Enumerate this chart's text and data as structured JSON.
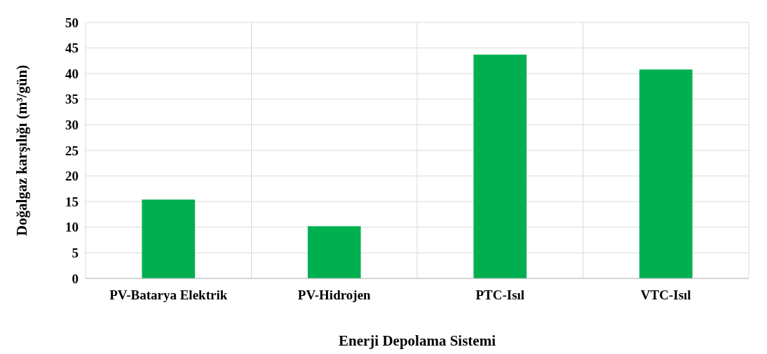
{
  "chart_data": {
    "type": "bar",
    "xlabel": "Enerji Depolama Sistemi",
    "ylabel": "Doğalgaz karşılığı (m³/gün)",
    "categories": [
      "PV-Batarya Elektrik",
      "PV-Hidrojen",
      "PTC-Isıl",
      "VTC-Isıl"
    ],
    "values": [
      15.4,
      10.2,
      43.7,
      40.8
    ],
    "color": "#00b050",
    "ylim": [
      0,
      50
    ],
    "yticks": [
      0,
      5,
      10,
      15,
      20,
      25,
      30,
      35,
      40,
      45,
      50
    ],
    "grid": true
  }
}
